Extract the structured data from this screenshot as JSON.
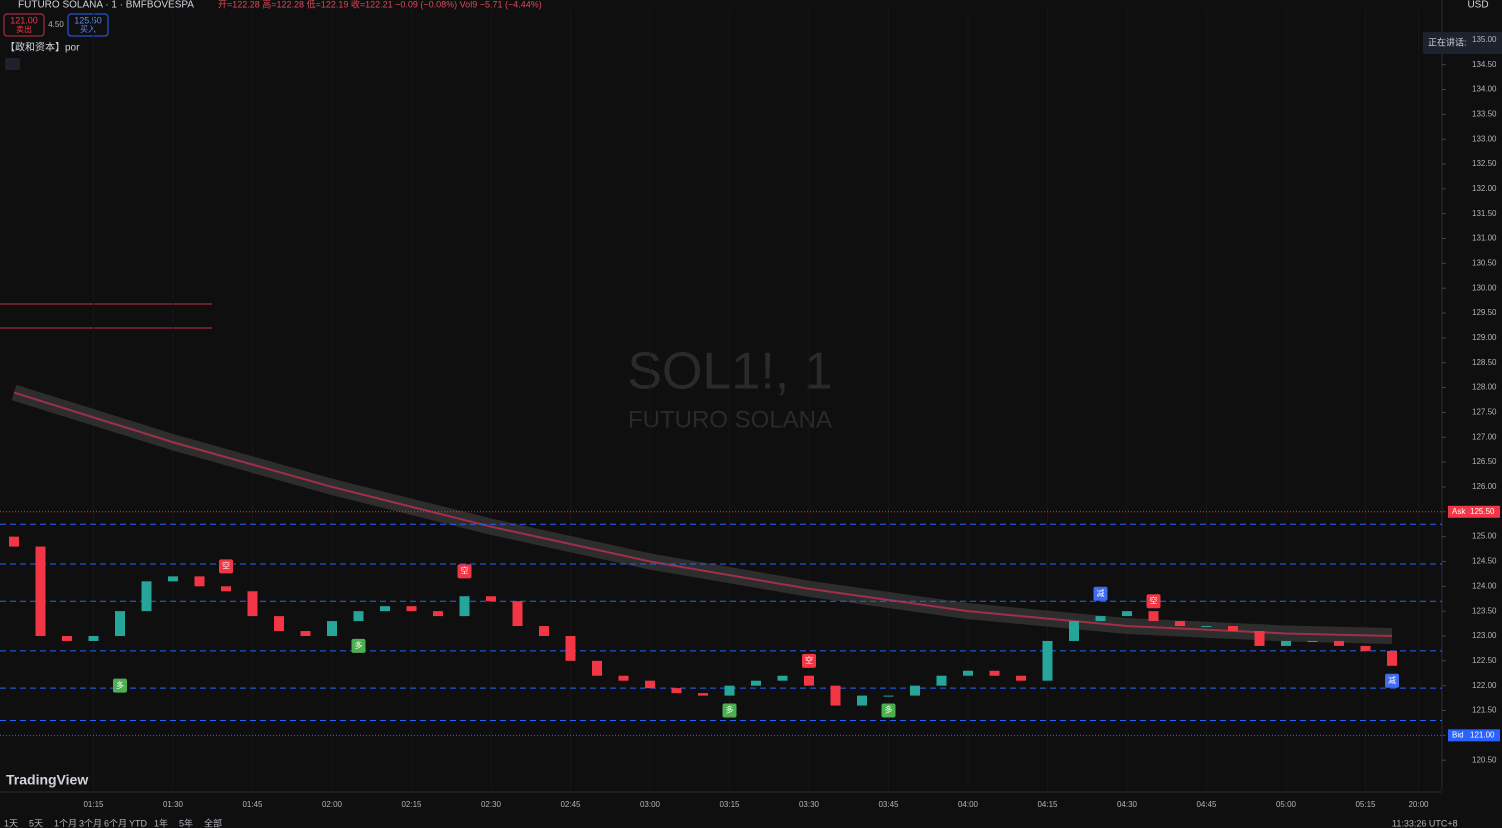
{
  "header": {
    "symbol": "FUTURO SOLANA · 1 · BMFBOVESPA",
    "ohlc": "开=122.28 高=122.28 低=122.19 收=122.21 −0.09 (−0.08%) Vol9 −5.71 (−4.44%)",
    "sell_price": "121.00",
    "sell_label": "卖出",
    "spread": "4.50",
    "buy_price": "125.50",
    "buy_label": "买入",
    "indicator": "【政和资本】por",
    "currency": "USD",
    "notice": "正在讲话:"
  },
  "watermark": {
    "symbol": "SOL1!, 1",
    "name": "FUTURO SOLANA"
  },
  "brand": "TradingView",
  "toolbar": {
    "ranges": [
      "1天",
      "5天",
      "1个月",
      "3个月",
      "6个月",
      "YTD",
      "1年",
      "5年",
      "全部"
    ],
    "clock": "11:33:26 UTC+8"
  },
  "chart_data": {
    "type": "candlestick",
    "open": [
      125.0,
      124.8,
      123.0,
      122.9,
      123.0,
      123.5,
      124.1,
      124.2,
      124.0,
      123.9,
      123.4,
      123.1,
      123.0,
      123.3,
      123.5,
      123.6,
      123.5,
      123.4,
      123.8,
      123.7,
      123.2,
      123.0,
      122.5,
      122.2,
      122.1,
      121.95,
      121.85,
      121.8,
      122.0,
      122.1,
      122.2,
      122.0,
      121.6,
      121.8,
      121.8,
      122.0,
      122.2,
      122.3,
      122.2,
      122.1,
      122.9,
      123.3,
      123.4,
      123.5,
      123.3,
      123.2,
      123.2,
      123.1,
      122.8,
      122.9,
      122.9,
      122.8,
      122.7
    ],
    "close": [
      124.8,
      123.0,
      122.9,
      123.0,
      123.5,
      124.1,
      124.2,
      124.0,
      123.9,
      123.4,
      123.1,
      123.0,
      123.3,
      123.5,
      123.6,
      123.5,
      123.4,
      123.8,
      123.7,
      123.2,
      123.0,
      122.5,
      122.2,
      122.1,
      121.95,
      121.85,
      121.8,
      122.0,
      122.1,
      122.2,
      122.0,
      121.6,
      121.8,
      121.8,
      122.0,
      122.2,
      122.3,
      122.2,
      122.1,
      122.9,
      123.3,
      123.4,
      123.5,
      123.3,
      123.2,
      123.2,
      123.1,
      122.8,
      122.9,
      122.9,
      122.8,
      122.7,
      122.4
    ],
    "ma": {
      "x": [
        0,
        6,
        12,
        18,
        24,
        30,
        36,
        42,
        48,
        52
      ],
      "values": [
        127.9,
        126.9,
        126.0,
        125.2,
        124.5,
        123.95,
        123.5,
        123.2,
        123.05,
        123.0
      ]
    },
    "levels": [
      125.25,
      124.45,
      123.7,
      122.7,
      121.95,
      121.3
    ],
    "ask": {
      "label": "Ask",
      "value": 125.5,
      "value_label": "125.50"
    },
    "bid": {
      "label": "Bid",
      "value": 121.0,
      "value_label": "121.00"
    },
    "signals": [
      {
        "index": 4,
        "price": 122.0,
        "label": "多"
      },
      {
        "index": 8,
        "price": 124.4,
        "label": "空"
      },
      {
        "index": 13,
        "price": 122.8,
        "label": "多"
      },
      {
        "index": 17,
        "price": 124.3,
        "label": "空"
      },
      {
        "index": 27,
        "price": 121.5,
        "label": "多"
      },
      {
        "index": 30,
        "price": 122.5,
        "label": "空"
      },
      {
        "index": 33,
        "price": 121.5,
        "label": "多"
      },
      {
        "index": 41,
        "price": 123.85,
        "label": "减"
      },
      {
        "index": 43,
        "price": 123.7,
        "label": "空"
      },
      {
        "index": 52,
        "price": 122.1,
        "label": "减"
      }
    ],
    "ylim": [
      119.9,
      135.6
    ],
    "yticks": [
      {
        "value": 120.5,
        "label": "120.50"
      },
      {
        "value": 121,
        "label": "121.00"
      },
      {
        "value": 121.5,
        "label": "121.50"
      },
      {
        "value": 122,
        "label": "122.00"
      },
      {
        "value": 122.5,
        "label": "122.50"
      },
      {
        "value": 123,
        "label": "123.00"
      },
      {
        "value": 123.5,
        "label": "123.50"
      },
      {
        "value": 124,
        "label": "124.00"
      },
      {
        "value": 124.5,
        "label": "124.50"
      },
      {
        "value": 125,
        "label": "125.00"
      },
      {
        "value": 125.5,
        "label": "125.50"
      },
      {
        "value": 126,
        "label": "126.00"
      },
      {
        "value": 126.5,
        "label": "126.50"
      },
      {
        "value": 127,
        "label": "127.00"
      },
      {
        "value": 127.5,
        "label": "127.50"
      },
      {
        "value": 128,
        "label": "128.00"
      },
      {
        "value": 128.5,
        "label": "128.50"
      },
      {
        "value": 129,
        "label": "129.00"
      },
      {
        "value": 129.5,
        "label": "129.50"
      },
      {
        "value": 130,
        "label": "130.00"
      },
      {
        "value": 130.5,
        "label": "130.50"
      },
      {
        "value": 131,
        "label": "131.00"
      },
      {
        "value": 131.5,
        "label": "131.50"
      },
      {
        "value": 132,
        "label": "132.00"
      },
      {
        "value": 132.5,
        "label": "132.50"
      },
      {
        "value": 133,
        "label": "133.00"
      },
      {
        "value": 133.5,
        "label": "133.50"
      },
      {
        "value": 134,
        "label": "134.00"
      },
      {
        "value": 134.5,
        "label": "134.50"
      },
      {
        "value": 135,
        "label": "135.00"
      }
    ],
    "xticks": [
      {
        "value": 3,
        "label": "01:15"
      },
      {
        "value": 6,
        "label": "01:30"
      },
      {
        "value": 9,
        "label": "01:45"
      },
      {
        "value": 12,
        "label": "02:00"
      },
      {
        "value": 15,
        "label": "02:15"
      },
      {
        "value": 18,
        "label": "02:30"
      },
      {
        "value": 21,
        "label": "02:45"
      },
      {
        "value": 24,
        "label": "03:00"
      },
      {
        "value": 27,
        "label": "03:15"
      },
      {
        "value": 30,
        "label": "03:30"
      },
      {
        "value": 33,
        "label": "03:45"
      },
      {
        "value": 36,
        "label": "04:00"
      },
      {
        "value": 39,
        "label": "04:15"
      },
      {
        "value": 42,
        "label": "04:30"
      },
      {
        "value": 45,
        "label": "04:45"
      },
      {
        "value": 48,
        "label": "05:00"
      },
      {
        "value": 51,
        "label": "05:15"
      },
      {
        "value": 53,
        "label": "20:00"
      }
    ]
  }
}
